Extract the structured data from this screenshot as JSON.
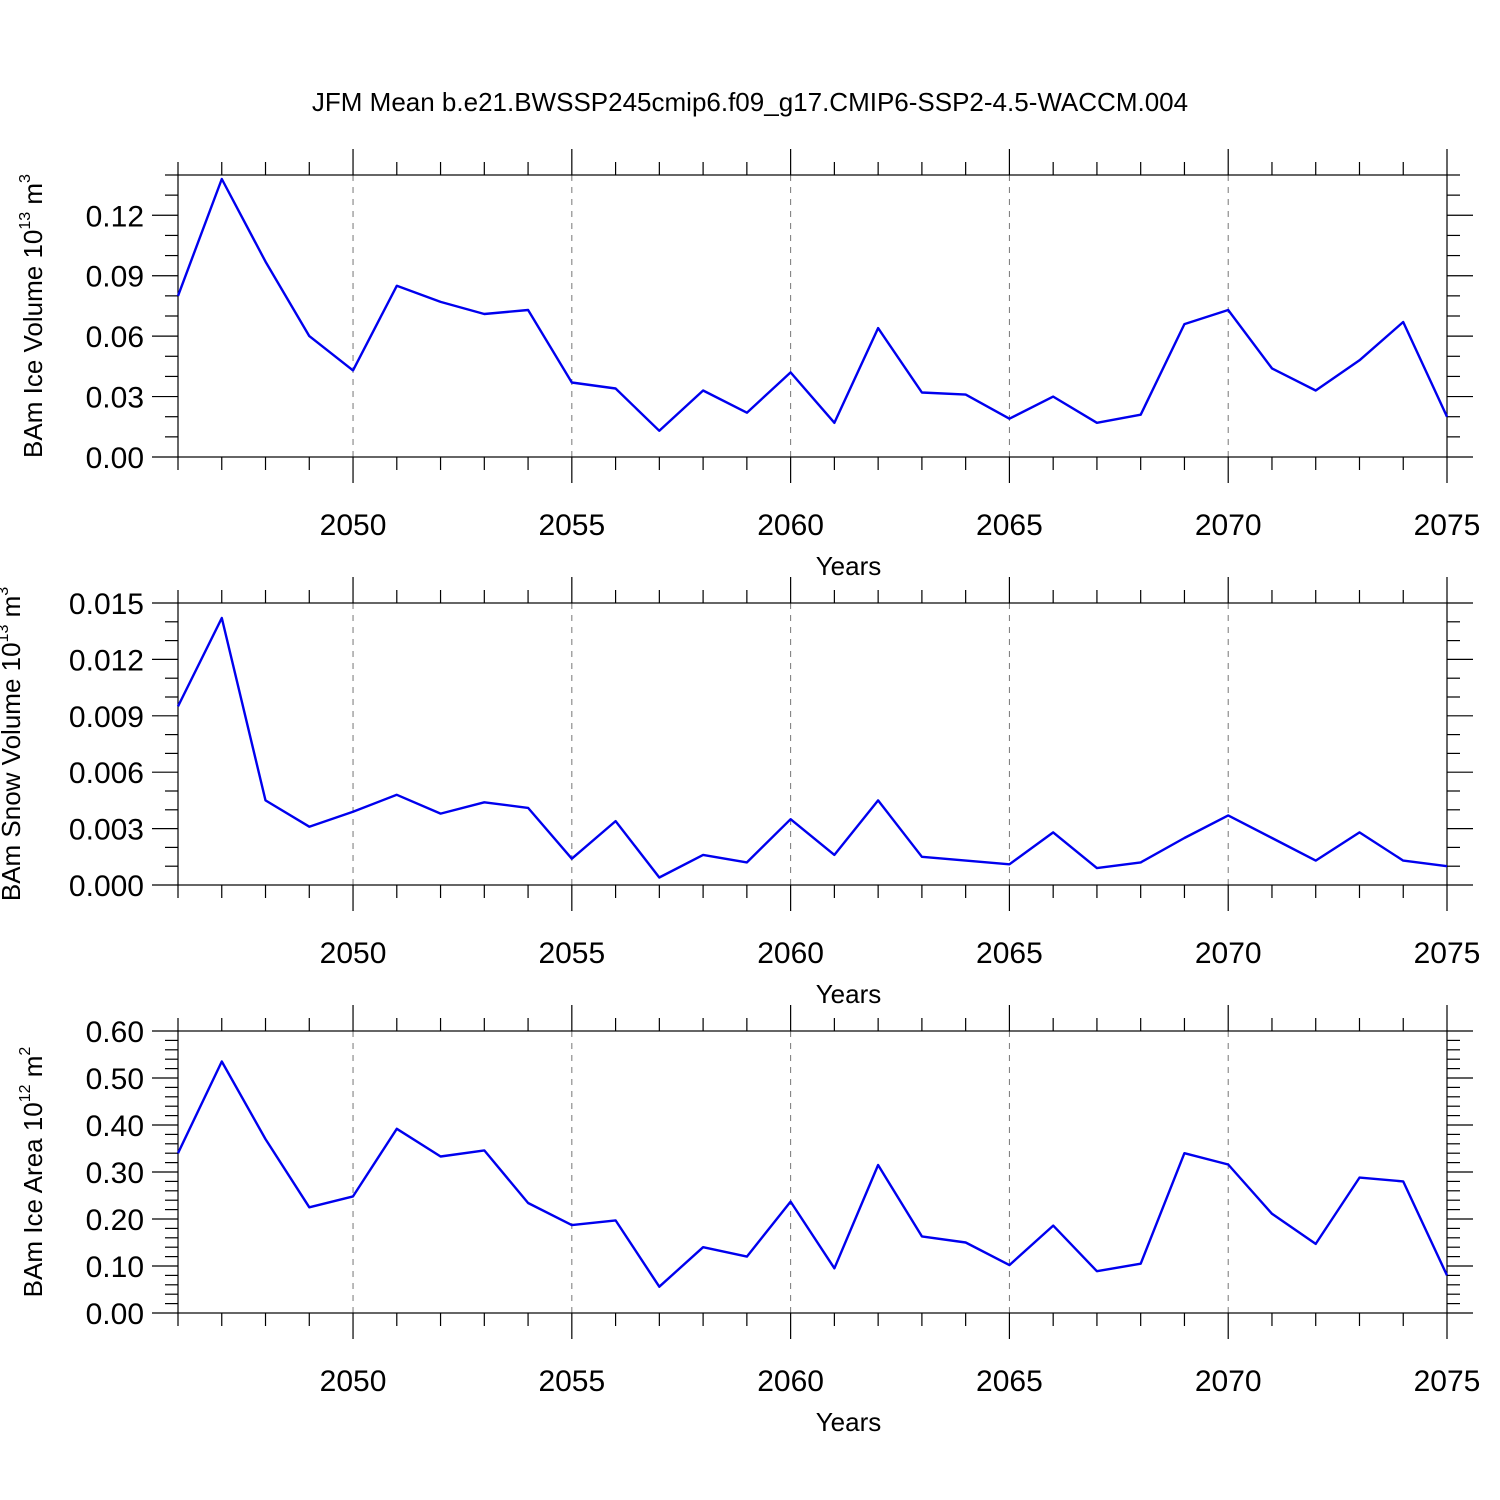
{
  "title": "JFM Mean b.e21.BWSSP245cmip6.f09_g17.CMIP6-SSP2-4.5-WACCM.004",
  "colors": {
    "line": "#0000ee",
    "grid": "#777777",
    "axis": "#000000"
  },
  "chart_data": [
    {
      "type": "line",
      "id": "ice-volume",
      "title": "",
      "xlabel": "Years",
      "ylabel_main": "BAm Ice Volume 10",
      "ylabel_sup": "13",
      "ylabel_unit": " m",
      "ylabel_unit_sup": "3",
      "xlim": [
        2046,
        2075
      ],
      "ylim": [
        0,
        0.14
      ],
      "yticks": [
        0,
        0.03,
        0.06,
        0.09,
        0.12
      ],
      "ytick_labels": [
        "0.00",
        "0.03",
        "0.06",
        "0.09",
        "0.12"
      ],
      "yminor_step": 0.01,
      "xticks": [
        2050,
        2055,
        2060,
        2065,
        2070,
        2075
      ],
      "xtick_labels": [
        "2050",
        "2055",
        "2060",
        "2065",
        "2070",
        "2075"
      ],
      "grid": "x-major dashed",
      "x": [
        2046,
        2047,
        2048,
        2049,
        2050,
        2051,
        2052,
        2053,
        2054,
        2055,
        2056,
        2057,
        2058,
        2059,
        2060,
        2061,
        2062,
        2063,
        2064,
        2065,
        2066,
        2067,
        2068,
        2069,
        2070,
        2071,
        2072,
        2073,
        2074,
        2075
      ],
      "series": [
        {
          "name": "BAm Ice Volume",
          "values": [
            0.08,
            0.138,
            0.097,
            0.06,
            0.043,
            0.085,
            0.077,
            0.071,
            0.073,
            0.037,
            0.034,
            0.013,
            0.033,
            0.022,
            0.042,
            0.017,
            0.064,
            0.032,
            0.031,
            0.019,
            0.03,
            0.017,
            0.021,
            0.066,
            0.073,
            0.044,
            0.033,
            0.048,
            0.067,
            0.02
          ]
        }
      ]
    },
    {
      "type": "line",
      "id": "snow-volume",
      "title": "",
      "xlabel": "Years",
      "ylabel_main": "BAm Snow Volume 10",
      "ylabel_sup": "13",
      "ylabel_unit": " m",
      "ylabel_unit_sup": "3",
      "xlim": [
        2046,
        2075
      ],
      "ylim": [
        0,
        0.015
      ],
      "yticks": [
        0,
        0.003,
        0.006,
        0.009,
        0.012,
        0.015
      ],
      "ytick_labels": [
        "0.000",
        "0.003",
        "0.006",
        "0.009",
        "0.012",
        "0.015"
      ],
      "yminor_step": 0.001,
      "xticks": [
        2050,
        2055,
        2060,
        2065,
        2070,
        2075
      ],
      "xtick_labels": [
        "2050",
        "2055",
        "2060",
        "2065",
        "2070",
        "2075"
      ],
      "grid": "x-major dashed",
      "x": [
        2046,
        2047,
        2048,
        2049,
        2050,
        2051,
        2052,
        2053,
        2054,
        2055,
        2056,
        2057,
        2058,
        2059,
        2060,
        2061,
        2062,
        2063,
        2064,
        2065,
        2066,
        2067,
        2068,
        2069,
        2070,
        2071,
        2072,
        2073,
        2074,
        2075
      ],
      "series": [
        {
          "name": "BAm Snow Volume",
          "values": [
            0.0095,
            0.0142,
            0.0045,
            0.0031,
            0.0039,
            0.0048,
            0.0038,
            0.0044,
            0.0041,
            0.0014,
            0.0034,
            0.0004,
            0.0016,
            0.0012,
            0.0035,
            0.0016,
            0.0045,
            0.0015,
            0.0013,
            0.0011,
            0.0028,
            0.0009,
            0.0012,
            0.0025,
            0.0037,
            0.0025,
            0.0013,
            0.0028,
            0.0013,
            0.001
          ]
        }
      ]
    },
    {
      "type": "line",
      "id": "ice-area",
      "title": "",
      "xlabel": "Years",
      "ylabel_main": "BAm Ice Area 10",
      "ylabel_sup": "12",
      "ylabel_unit": " m",
      "ylabel_unit_sup": "2",
      "xlim": [
        2046,
        2075
      ],
      "ylim": [
        0,
        0.6
      ],
      "yticks": [
        0,
        0.1,
        0.2,
        0.3,
        0.4,
        0.5,
        0.6
      ],
      "ytick_labels": [
        "0.00",
        "0.10",
        "0.20",
        "0.30",
        "0.40",
        "0.50",
        "0.60"
      ],
      "yminor_step": 0.02,
      "xticks": [
        2050,
        2055,
        2060,
        2065,
        2070,
        2075
      ],
      "xtick_labels": [
        "2050",
        "2055",
        "2060",
        "2065",
        "2070",
        "2075"
      ],
      "grid": "x-major dashed",
      "x": [
        2046,
        2047,
        2048,
        2049,
        2050,
        2051,
        2052,
        2053,
        2054,
        2055,
        2056,
        2057,
        2058,
        2059,
        2060,
        2061,
        2062,
        2063,
        2064,
        2065,
        2066,
        2067,
        2068,
        2069,
        2070,
        2071,
        2072,
        2073,
        2074,
        2075
      ],
      "series": [
        {
          "name": "BAm Ice Area",
          "values": [
            0.34,
            0.535,
            0.37,
            0.225,
            0.248,
            0.392,
            0.333,
            0.346,
            0.234,
            0.187,
            0.197,
            0.056,
            0.14,
            0.12,
            0.237,
            0.095,
            0.315,
            0.163,
            0.15,
            0.102,
            0.186,
            0.089,
            0.105,
            0.34,
            0.316,
            0.211,
            0.147,
            0.288,
            0.28,
            0.08
          ]
        }
      ]
    }
  ]
}
